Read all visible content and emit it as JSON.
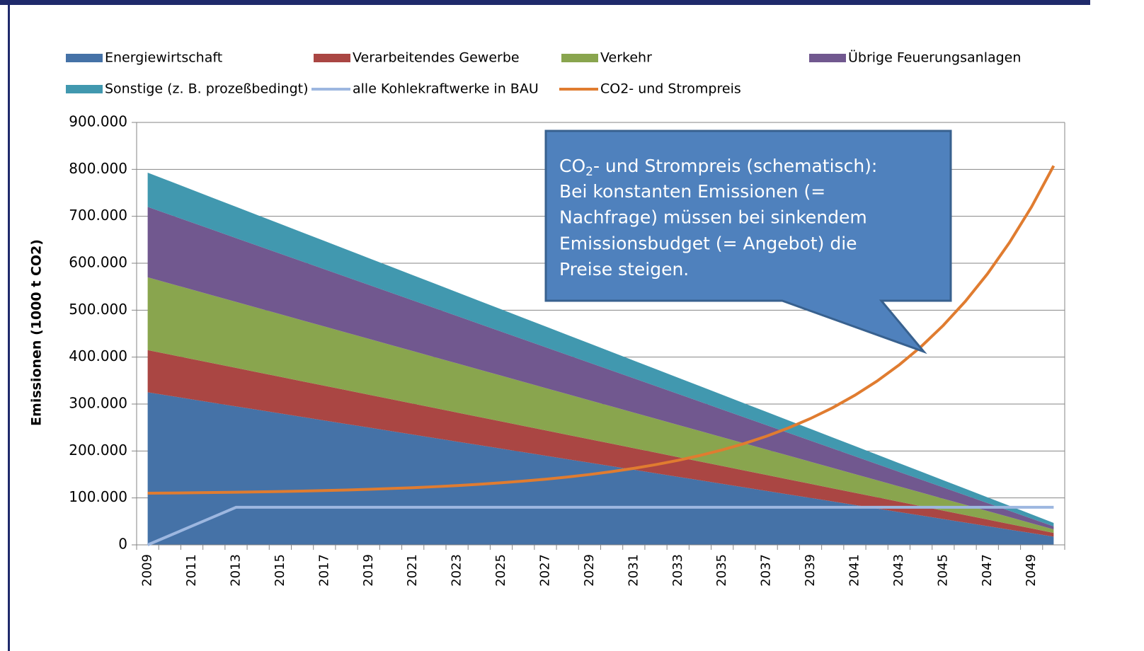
{
  "chart_data": {
    "type": "area",
    "ylabel": "Emissionen (1000 t CO2)",
    "categories": [
      "2009",
      null,
      "2011",
      null,
      "2013",
      null,
      "2015",
      null,
      "2017",
      null,
      "2019",
      null,
      "2021",
      null,
      "2023",
      null,
      "2025",
      null,
      "2027",
      null,
      "2029",
      null,
      "2031",
      null,
      "2033",
      null,
      "2035",
      null,
      "2037",
      null,
      "2039",
      null,
      "2041",
      null,
      "2043",
      null,
      "2045",
      null,
      "2047",
      null,
      "2049",
      null
    ],
    "ylim": [
      0,
      900000
    ],
    "yticks": [
      0,
      {
        "value": 100000,
        "label": "100.000"
      },
      {
        "value": 200000,
        "label": "200.000"
      },
      {
        "value": 300000,
        "label": "300.000"
      },
      {
        "value": 400000,
        "label": "400.000"
      },
      {
        "value": 500000,
        "label": "500.000"
      },
      {
        "value": 600000,
        "label": "600.000"
      },
      {
        "value": 700000,
        "label": "700.000"
      },
      {
        "value": 800000,
        "label": "800.000"
      },
      {
        "value": 900000,
        "label": "900.000"
      }
    ],
    "grid": true,
    "legend": "top",
    "series": [
      {
        "name": "Energiewirtschaft",
        "type": "area",
        "color": "#4572a7",
        "values": [
          325000,
          317500,
          310000,
          302500,
          295000,
          287500,
          280000,
          272500,
          265000,
          257500,
          250000,
          242500,
          235000,
          227500,
          220000,
          212500,
          205000,
          197500,
          190000,
          182500,
          175000,
          167500,
          160000,
          152500,
          145000,
          137500,
          130000,
          122500,
          115000,
          107500,
          100000,
          92500,
          85000,
          77500,
          70000,
          62500,
          55000,
          47500,
          40000,
          32500,
          25000,
          17500
        ]
      },
      {
        "name": "Verarbeitendes Gewerbe",
        "type": "area",
        "color": "#aa4643",
        "values": [
          90000,
          88000,
          86000,
          84000,
          82000,
          80000,
          78000,
          76000,
          74000,
          72000,
          70000,
          68000,
          66000,
          64000,
          62000,
          60000,
          58000,
          56000,
          54000,
          52000,
          50000,
          48000,
          46000,
          44000,
          42000,
          40000,
          38000,
          36000,
          34000,
          32000,
          30000,
          28000,
          26000,
          24000,
          22000,
          20000,
          18000,
          16000,
          14000,
          12000,
          10000,
          8000
        ]
      },
      {
        "name": "Verkehr",
        "type": "area",
        "color": "#89a54e",
        "values": [
          155000,
          151400,
          147800,
          144200,
          140600,
          137000,
          133400,
          129800,
          126200,
          122600,
          119000,
          115400,
          111800,
          108200,
          104600,
          101000,
          97400,
          93800,
          90200,
          86600,
          83000,
          79400,
          75800,
          72200,
          68600,
          65000,
          61400,
          57800,
          54200,
          50600,
          47000,
          43400,
          39800,
          36200,
          32600,
          29000,
          25400,
          21800,
          18200,
          14600,
          11000,
          7400
        ]
      },
      {
        "name": "Übrige Feuerungsanlagen",
        "type": "area",
        "color": "#71588f",
        "values": [
          150000,
          146500,
          143000,
          139500,
          136000,
          132500,
          129000,
          125500,
          122000,
          118500,
          115000,
          111500,
          108000,
          104500,
          101000,
          97500,
          94000,
          90500,
          87000,
          83500,
          80000,
          76500,
          73000,
          69500,
          66000,
          62500,
          59000,
          55500,
          52000,
          48500,
          45000,
          41500,
          38000,
          34500,
          31000,
          27500,
          24000,
          20500,
          17000,
          13500,
          10000,
          6500
        ]
      },
      {
        "name": "Sonstige (z. B. prozeßbedingt)",
        "type": "area",
        "color": "#4198af",
        "values": [
          73000,
          71400,
          69800,
          68200,
          66600,
          65000,
          63400,
          61800,
          60200,
          58600,
          57000,
          55400,
          53800,
          52200,
          50600,
          49000,
          47400,
          45800,
          44200,
          42600,
          41000,
          39400,
          37800,
          36200,
          34600,
          33000,
          31400,
          29800,
          28200,
          26600,
          25000,
          23400,
          21800,
          20200,
          18600,
          17000,
          15400,
          13800,
          12200,
          10600,
          9000,
          7400
        ]
      },
      {
        "name": "alle Kohlekraftwerke in BAU",
        "type": "line",
        "color": "#9db7e0",
        "values": [
          0,
          20000,
          40000,
          60000,
          80000,
          80000,
          80000,
          80000,
          80000,
          80000,
          80000,
          80000,
          80000,
          80000,
          80000,
          80000,
          80000,
          80000,
          80000,
          80000,
          80000,
          80000,
          80000,
          80000,
          80000,
          80000,
          80000,
          80000,
          80000,
          80000,
          80000,
          80000,
          80000,
          80000,
          80000,
          80000,
          80000,
          80000,
          80000,
          80000,
          80000,
          80000
        ]
      },
      {
        "name": "CO2- und Strompreis",
        "type": "line",
        "color": "#e07c30",
        "values": [
          110000,
          110400,
          110900,
          111500,
          112100,
          112800,
          113700,
          114600,
          115700,
          116900,
          118300,
          120000,
          121800,
          123900,
          126300,
          129100,
          132200,
          135800,
          139900,
          144600,
          149900,
          156000,
          163000,
          171000,
          180100,
          190500,
          202300,
          215900,
          231400,
          249100,
          269300,
          292200,
          318600,
          348700,
          383100,
          422300,
          467300,
          518600,
          577100,
          644000,
          720200,
          807500
        ]
      }
    ],
    "annotation": {
      "first_line": [
        "CO",
        "2",
        "- und Strompreis (schematisch):"
      ],
      "lines": [
        "Bei konstanten Emissionen (=",
        "Nachfrage) müssen bei sinkendem",
        "Emissionsbudget (= Angebot) die",
        "Preise steigen."
      ]
    }
  }
}
